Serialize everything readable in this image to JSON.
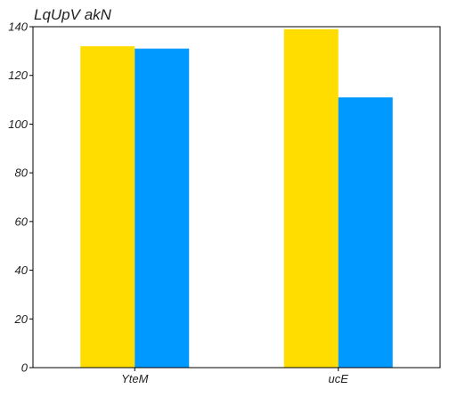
{
  "chart_data": {
    "type": "bar",
    "title": "LqUpV akN",
    "xlabel": "",
    "ylabel": "",
    "categories": [
      "YteM",
      "ucE"
    ],
    "series": [
      {
        "values": [
          132,
          139
        ],
        "color": "#FFDD00"
      },
      {
        "values": [
          131,
          111
        ],
        "color": "#0099FF"
      }
    ],
    "ylim": [
      0,
      140
    ],
    "yticks": [
      0,
      20,
      40,
      60,
      80,
      100,
      120,
      140
    ],
    "grid": false,
    "legend": "none"
  }
}
